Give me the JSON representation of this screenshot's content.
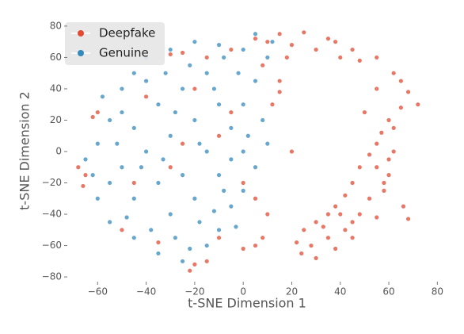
{
  "chart_data": {
    "type": "scatter",
    "xlabel": "t-SNE Dimension 1",
    "ylabel": "t-SNE Dimension 2",
    "xlim": [
      -72.5,
      82.5
    ],
    "ylim": [
      -83,
      84
    ],
    "xticks": [
      {
        "value": -60,
        "label": "−60"
      },
      {
        "value": -40,
        "label": "−40"
      },
      {
        "value": -20,
        "label": "−20"
      },
      0,
      20,
      40,
      60,
      80
    ],
    "yticks": [
      {
        "value": -80,
        "label": "−80"
      },
      {
        "value": -60,
        "label": "−60"
      },
      {
        "value": -40,
        "label": "−40"
      },
      {
        "value": -20,
        "label": "−20"
      },
      0,
      20,
      40,
      60,
      80
    ],
    "legend": "upper left",
    "series": [
      {
        "name": "Deepfake",
        "color": "#E24A33",
        "x": [
          -30,
          -25,
          -15,
          -5,
          5,
          15,
          25,
          35,
          45,
          55,
          62,
          68,
          72,
          65,
          60,
          57,
          55,
          52,
          48,
          45,
          42,
          38,
          35,
          30,
          25,
          22,
          24,
          30,
          38,
          42,
          48,
          52,
          58,
          55,
          60,
          62,
          62,
          66,
          68,
          55,
          45,
          35,
          28,
          50,
          55,
          40,
          30,
          20,
          10,
          18,
          8,
          15,
          12,
          20,
          10,
          8,
          5,
          0,
          -10,
          -20,
          -22,
          -15,
          -62,
          -60,
          -65,
          -66,
          -68,
          -20,
          -30,
          -25,
          -40,
          -10,
          -45,
          -35,
          -50,
          0,
          5,
          -5,
          15,
          60,
          45,
          33,
          65,
          48,
          38,
          58,
          40
        ],
        "values": [
          62,
          63,
          60,
          65,
          72,
          75,
          76,
          72,
          65,
          60,
          50,
          38,
          30,
          28,
          20,
          12,
          5,
          -2,
          -10,
          -20,
          -28,
          -35,
          -40,
          -45,
          -50,
          -58,
          -65,
          -68,
          -62,
          -50,
          -40,
          -30,
          -20,
          -10,
          -5,
          0,
          15,
          -35,
          -43,
          -42,
          -55,
          -55,
          -60,
          25,
          40,
          60,
          65,
          68,
          70,
          60,
          55,
          45,
          30,
          0,
          -40,
          -55,
          -60,
          -62,
          -55,
          -72,
          -76,
          -70,
          22,
          25,
          -15,
          -22,
          -10,
          40,
          -10,
          5,
          35,
          10,
          -20,
          -58,
          -50,
          -20,
          -30,
          25,
          38,
          -15,
          -45,
          -48,
          45,
          58,
          70,
          -25,
          -40
        ]
      },
      {
        "name": "Genuine",
        "color": "#348ABD",
        "x": [
          -60,
          -55,
          -50,
          -45,
          -40,
          -30,
          -20,
          -10,
          0,
          5,
          10,
          5,
          0,
          8,
          10,
          5,
          0,
          -5,
          -10,
          -15,
          -25,
          -35,
          -45,
          -55,
          -60,
          -62,
          -65,
          -50,
          -40,
          -30,
          -20,
          -10,
          -35,
          -45,
          -25,
          -15,
          -5,
          -15,
          -25,
          -35,
          -45,
          -30,
          -20,
          -10,
          0,
          -5,
          -40,
          -50,
          -55,
          -38,
          -28,
          -18,
          -8,
          2,
          -12,
          -22,
          -32,
          -42,
          -52,
          -28,
          -18,
          -2,
          -48,
          -22,
          12,
          -58,
          -8,
          -33,
          -12,
          -3
        ],
        "values": [
          5,
          20,
          40,
          50,
          60,
          65,
          70,
          68,
          65,
          75,
          60,
          45,
          30,
          20,
          5,
          -10,
          -25,
          -35,
          -50,
          -60,
          -70,
          -65,
          -55,
          -45,
          -30,
          -15,
          -5,
          -10,
          0,
          10,
          20,
          30,
          30,
          15,
          40,
          50,
          15,
          0,
          -15,
          -20,
          -30,
          -40,
          -30,
          -15,
          0,
          -5,
          45,
          25,
          -20,
          -50,
          -55,
          -45,
          -25,
          10,
          40,
          55,
          50,
          -10,
          5,
          25,
          5,
          50,
          -42,
          -62,
          70,
          35,
          60,
          -5,
          -38,
          -48
        ]
      }
    ]
  }
}
